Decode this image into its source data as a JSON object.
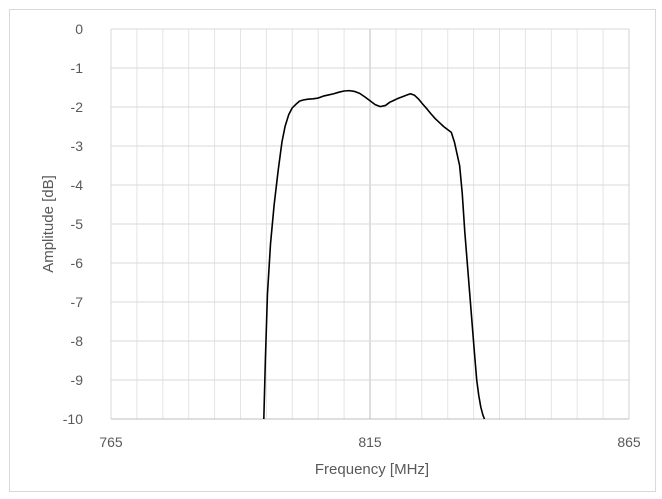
{
  "chart_data": {
    "type": "line",
    "title": "",
    "xlabel": "Frequency [MHz]",
    "ylabel": "Amplitude [dB]",
    "xlim": [
      765,
      865
    ],
    "ylim": [
      -10,
      0
    ],
    "x_ticks": [
      765,
      815,
      865
    ],
    "x_tick_labels": [
      "765",
      "815",
      "865"
    ],
    "y_ticks": [
      0,
      -1,
      -2,
      -3,
      -4,
      -5,
      -6,
      -7,
      -8,
      -9,
      -10
    ],
    "y_tick_labels": [
      "0",
      "-1",
      "-2",
      "-3",
      "-4",
      "-5",
      "-6",
      "-7",
      "-8",
      "-9",
      "-10"
    ],
    "x_minor_grid_step": 5,
    "x_major_grid_step": 50,
    "y_grid_step": 1,
    "grid": true,
    "legend": "none",
    "line_color": "#000000",
    "series": [
      {
        "values_x": [
          794.5,
          794.8,
          795.2,
          795.8,
          796.5,
          797.3,
          798.0,
          798.6,
          799.3,
          800.0,
          800.7,
          801.4,
          802.1,
          803.0,
          804.0,
          805.0,
          806.0,
          807.0,
          808.0,
          809.0,
          810.0,
          811.0,
          812.0,
          813.0,
          814.0,
          815.0,
          816.0,
          817.0,
          818.0,
          818.8,
          819.6,
          820.4,
          821.2,
          822.0,
          822.8,
          823.6,
          824.4,
          825.2,
          826.0,
          826.8,
          827.6,
          828.4,
          829.2,
          830.0,
          830.7,
          831.3,
          831.8,
          832.3,
          832.8,
          833.3,
          833.9,
          834.5,
          835.1,
          835.6,
          836.0,
          836.4,
          836.8,
          837.1
        ],
        "values_y": [
          -10.0,
          -8.5,
          -6.8,
          -5.5,
          -4.5,
          -3.6,
          -2.9,
          -2.5,
          -2.2,
          -2.02,
          -1.93,
          -1.85,
          -1.82,
          -1.8,
          -1.79,
          -1.77,
          -1.72,
          -1.69,
          -1.66,
          -1.62,
          -1.59,
          -1.58,
          -1.6,
          -1.65,
          -1.74,
          -1.84,
          -1.94,
          -1.99,
          -1.96,
          -1.88,
          -1.83,
          -1.78,
          -1.74,
          -1.7,
          -1.66,
          -1.7,
          -1.8,
          -1.93,
          -2.05,
          -2.18,
          -2.3,
          -2.4,
          -2.5,
          -2.58,
          -2.65,
          -2.9,
          -3.2,
          -3.5,
          -4.2,
          -5.2,
          -6.2,
          -7.2,
          -8.2,
          -9.0,
          -9.4,
          -9.7,
          -9.9,
          -10.0
        ]
      }
    ]
  }
}
